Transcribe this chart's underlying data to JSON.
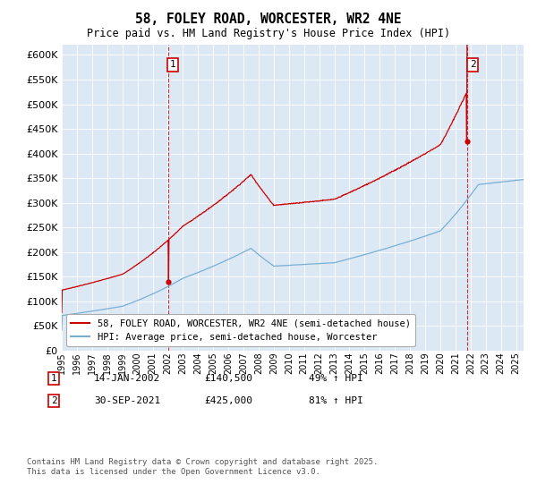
{
  "title": "58, FOLEY ROAD, WORCESTER, WR2 4NE",
  "subtitle": "Price paid vs. HM Land Registry's House Price Index (HPI)",
  "legend_label_red": "58, FOLEY ROAD, WORCESTER, WR2 4NE (semi-detached house)",
  "legend_label_blue": "HPI: Average price, semi-detached house, Worcester",
  "annotation1_date": "14-JAN-2002",
  "annotation1_price": "£140,500",
  "annotation1_hpi": "49% ↑ HPI",
  "annotation2_date": "30-SEP-2021",
  "annotation2_price": "£425,000",
  "annotation2_hpi": "81% ↑ HPI",
  "footnote": "Contains HM Land Registry data © Crown copyright and database right 2025.\nThis data is licensed under the Open Government Licence v3.0.",
  "ylim": [
    0,
    620000
  ],
  "yticks": [
    0,
    50000,
    100000,
    150000,
    200000,
    250000,
    300000,
    350000,
    400000,
    450000,
    500000,
    550000,
    600000
  ],
  "red_color": "#cc0000",
  "blue_color": "#7aafd4",
  "background_color": "#ffffff",
  "plot_bg_color": "#dce9f5",
  "grid_color": "#ffffff",
  "annotation1_year": 2002.04,
  "annotation1_value": 140500,
  "annotation2_year": 2021.75,
  "annotation2_value": 425000
}
